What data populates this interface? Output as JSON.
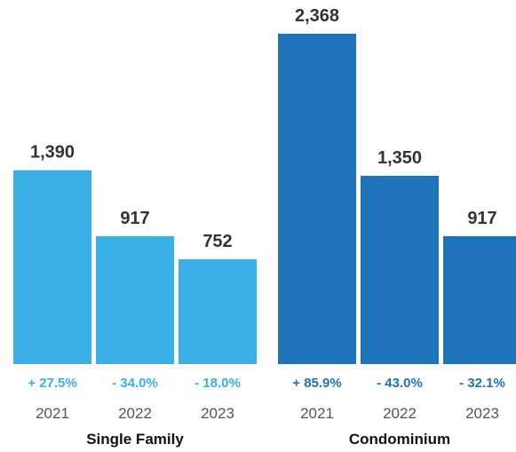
{
  "chart_data": {
    "type": "bar",
    "ylim": [
      0,
      2368
    ],
    "grid": false,
    "groups": [
      {
        "name": "Single Family",
        "color": "#3AB0E6",
        "change_color": "#3AB0E6",
        "bars": [
          {
            "year": "2021",
            "value": 1390,
            "value_label": "1,390",
            "change": "+ 27.5%"
          },
          {
            "year": "2022",
            "value": 917,
            "value_label": "917",
            "change": "- 34.0%"
          },
          {
            "year": "2023",
            "value": 752,
            "value_label": "752",
            "change": "- 18.0%"
          }
        ]
      },
      {
        "name": "Condominium",
        "color": "#1F73B9",
        "change_color": "#1F73B9",
        "bars": [
          {
            "year": "2021",
            "value": 2368,
            "value_label": "2,368",
            "change": "+ 85.9%"
          },
          {
            "year": "2022",
            "value": 1350,
            "value_label": "1,350",
            "change": "- 43.0%"
          },
          {
            "year": "2023",
            "value": 917,
            "value_label": "917",
            "change": "- 32.1%"
          }
        ]
      }
    ]
  }
}
